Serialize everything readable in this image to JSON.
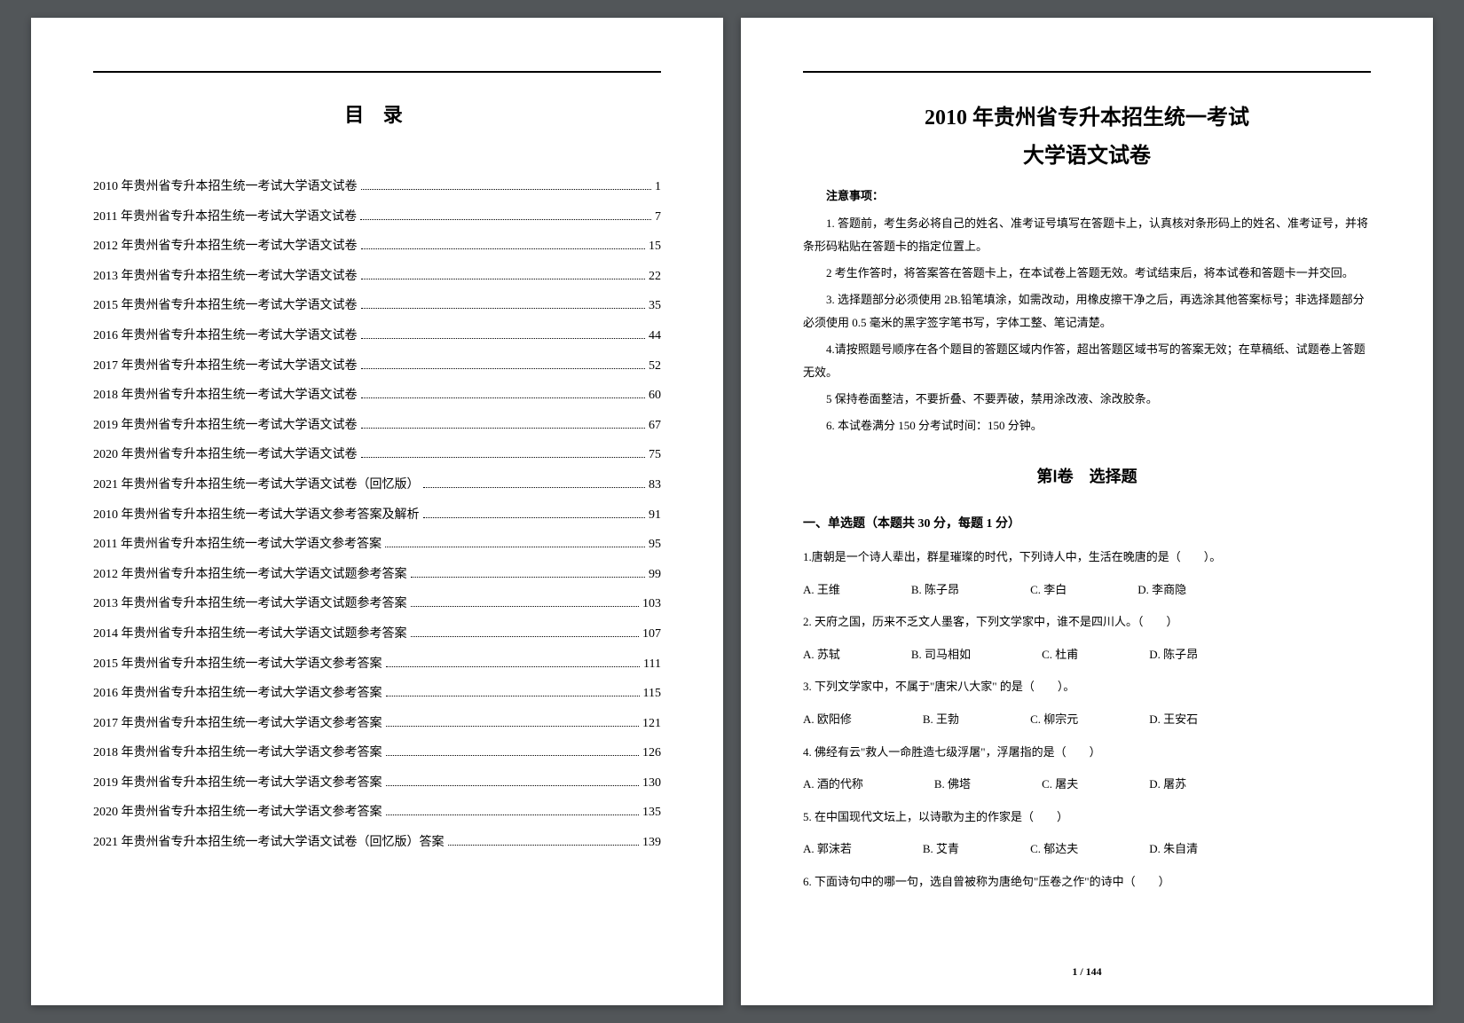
{
  "leftPage": {
    "title": "目 录",
    "tocItems": [
      {
        "label": "2010 年贵州省专升本招生统一考试大学语文试卷",
        "page": "1"
      },
      {
        "label": "2011 年贵州省专升本招生统一考试大学语文试卷",
        "page": "7"
      },
      {
        "label": "2012 年贵州省专升本招生统一考试大学语文试卷",
        "page": "15"
      },
      {
        "label": "2013 年贵州省专升本招生统一考试大学语文试卷",
        "page": "22"
      },
      {
        "label": "2015 年贵州省专升本招生统一考试大学语文试卷",
        "page": "35"
      },
      {
        "label": "2016 年贵州省专升本招生统一考试大学语文试卷",
        "page": "44"
      },
      {
        "label": "2017 年贵州省专升本招生统一考试大学语文试卷",
        "page": "52"
      },
      {
        "label": "2018 年贵州省专升本招生统一考试大学语文试卷",
        "page": "60"
      },
      {
        "label": "2019 年贵州省专升本招生统一考试大学语文试卷",
        "page": "67"
      },
      {
        "label": "2020 年贵州省专升本招生统一考试大学语文试卷",
        "page": "75"
      },
      {
        "label": "2021 年贵州省专升本招生统一考试大学语文试卷（回忆版）",
        "page": "83"
      },
      {
        "label": "2010 年贵州省专升本招生统一考试大学语文参考答案及解析",
        "page": "91"
      },
      {
        "label": "2011 年贵州省专升本招生统一考试大学语文参考答案",
        "page": "95"
      },
      {
        "label": "2012 年贵州省专升本招生统一考试大学语文试题参考答案",
        "page": "99"
      },
      {
        "label": "2013 年贵州省专升本招生统一考试大学语文试题参考答案",
        "page": "103"
      },
      {
        "label": "2014 年贵州省专升本招生统一考试大学语文试题参考答案",
        "page": "107"
      },
      {
        "label": "2015 年贵州省专升本招生统一考试大学语文参考答案",
        "page": "111"
      },
      {
        "label": "2016 年贵州省专升本招生统一考试大学语文参考答案",
        "page": "115"
      },
      {
        "label": "2017 年贵州省专升本招生统一考试大学语文参考答案",
        "page": "121"
      },
      {
        "label": "2018 年贵州省专升本招生统一考试大学语文参考答案",
        "page": "126"
      },
      {
        "label": "2019 年贵州省专升本招生统一考试大学语文参考答案",
        "page": "130"
      },
      {
        "label": "2020 年贵州省专升本招生统一考试大学语文参考答案",
        "page": "135"
      },
      {
        "label": "2021 年贵州省专升本招生统一考试大学语文试卷（回忆版）答案",
        "page": "139"
      }
    ]
  },
  "rightPage": {
    "examTitle": "2010 年贵州省专升本招生统一考试",
    "examSubtitle": "大学语文试卷",
    "noticeTitle": "注意事项：",
    "notices": [
      "1. 答题前，考生务必将自己的姓名、准考证号填写在答题卡上，认真核对条形码上的姓名、准考证号，并将条形码粘贴在答题卡的指定位置上。",
      "2 考生作答时，将答案答在答题卡上，在本试卷上答题无效。考试结束后，将本试卷和答题卡一并交回。",
      "3. 选择题部分必须使用 2B.铅笔填涂，如需改动，用橡皮擦干净之后，再选涂其他答案标号；非选择题部分必须使用 0.5 毫米的黑字签字笔书写，字体工整、笔记清楚。",
      "4.请按照题号顺序在各个题目的答题区域内作答，超出答题区域书写的答案无效；在草稿纸、试题卷上答题无效。",
      "5 保持卷面整洁，不要折叠、不要弄破，禁用涂改液、涂改胶条。",
      "6. 本试卷满分 150 分考试时间：150 分钟。"
    ],
    "sectionTitle": "第Ⅰ卷　选择题",
    "questionSectionTitle": "一、单选题（本题共 30 分，每题 1 分）",
    "questions": [
      {
        "text": "1.唐朝是一个诗人辈出，群星璀璨的时代，下列诗人中，生活在晚唐的是（　　）。",
        "options": [
          "A. 王维",
          "B. 陈子昂",
          "C. 李白",
          "D. 李商隐"
        ]
      },
      {
        "text": "2. 天府之国，历来不乏文人墨客，下列文学家中，谁不是四川人。（　　）",
        "options": [
          "A. 苏轼",
          "B. 司马相如",
          "C. 杜甫",
          "D. 陈子昂"
        ]
      },
      {
        "text": "3. 下列文学家中，不属于\"唐宋八大家\" 的是（　　）。",
        "options": [
          "A. 欧阳修",
          "B. 王勃",
          "C. 柳宗元",
          "D. 王安石"
        ]
      },
      {
        "text": "4. 佛经有云\"救人一命胜造七级浮屠\"，浮屠指的是（　　）",
        "options": [
          "A. 酒的代称",
          "B. 佛塔",
          "C. 屠夫",
          "D. 屠苏"
        ]
      },
      {
        "text": "5. 在中国现代文坛上，以诗歌为主的作家是（　　）",
        "options": [
          "A. 郭沫若",
          "B. 艾青",
          "C. 郁达夫",
          "D. 朱自清"
        ]
      },
      {
        "text": "6. 下面诗句中的哪一句，选自曾被称为唐绝句\"压卷之作\"的诗中（　　）",
        "options": []
      }
    ],
    "pageNumber": "1 / 144"
  }
}
